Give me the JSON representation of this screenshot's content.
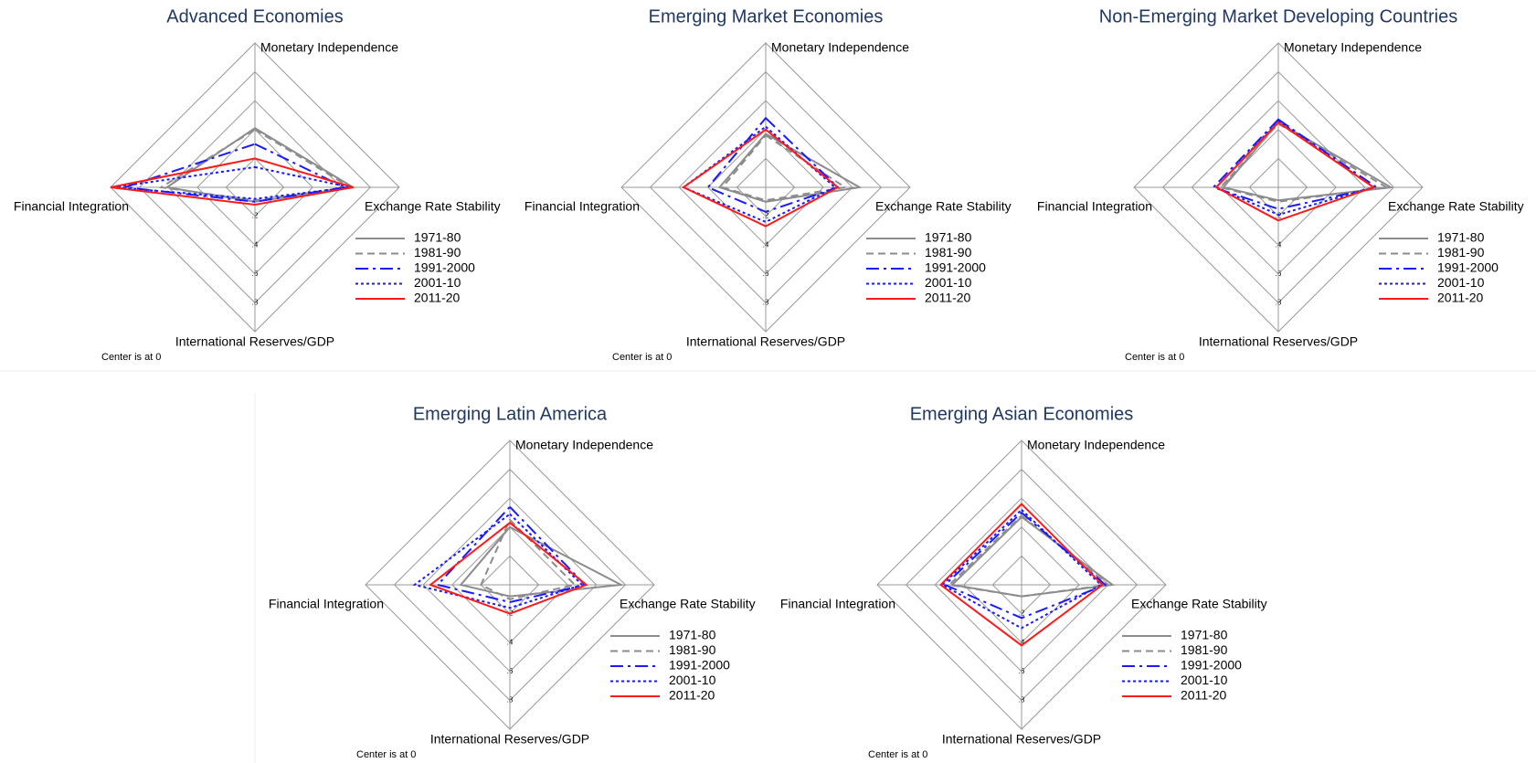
{
  "chart_data": [
    {
      "type": "radar",
      "title": "Advanced Economies",
      "categories": [
        "Monetary Independence",
        "Exchange Rate Stability",
        "International Reserves/GDP",
        "Financial Integration"
      ],
      "rlim": [
        0,
        1
      ],
      "rticks": [
        {
          "value": 0.2,
          "label": ".2"
        },
        {
          "value": 0.4,
          "label": ".4"
        },
        {
          "value": 0.6,
          "label": ".6"
        },
        {
          "value": 0.8,
          "label": ".8"
        }
      ],
      "annotation": "Center is at 0",
      "series": [
        {
          "name": "1971-80",
          "color": "#8c8c8c",
          "dash": "solid",
          "values": [
            0.41,
            0.68,
            0.1,
            0.61
          ]
        },
        {
          "name": "1981-90",
          "color": "#8c8c8c",
          "dash": "dash",
          "values": [
            0.4,
            0.66,
            0.09,
            0.65
          ]
        },
        {
          "name": "1991-2000",
          "color": "#1a1aff",
          "dash": "dashdot",
          "values": [
            0.3,
            0.62,
            0.1,
            0.9
          ]
        },
        {
          "name": "2001-10",
          "color": "#1a1aff",
          "dash": "dot",
          "values": [
            0.14,
            0.66,
            0.08,
            0.98
          ]
        },
        {
          "name": "2011-20",
          "color": "#ff1a1a",
          "dash": "solid",
          "values": [
            0.2,
            0.68,
            0.12,
            1.0
          ]
        }
      ]
    },
    {
      "type": "radar",
      "title": "Emerging Market Economies",
      "categories": [
        "Monetary Independence",
        "Exchange Rate Stability",
        "International Reserves/GDP",
        "Financial Integration"
      ],
      "rlim": [
        0,
        1
      ],
      "rticks": [
        {
          "value": 0.2,
          "label": ".2"
        },
        {
          "value": 0.4,
          "label": ".4"
        },
        {
          "value": 0.6,
          "label": ".6"
        },
        {
          "value": 0.8,
          "label": ".8"
        }
      ],
      "annotation": "Center is at 0",
      "series": [
        {
          "name": "1971-80",
          "color": "#8c8c8c",
          "dash": "solid",
          "values": [
            0.37,
            0.65,
            0.1,
            0.32
          ]
        },
        {
          "name": "1981-90",
          "color": "#8c8c8c",
          "dash": "dash",
          "values": [
            0.36,
            0.55,
            0.09,
            0.3
          ]
        },
        {
          "name": "1991-2000",
          "color": "#1a1aff",
          "dash": "dashdot",
          "values": [
            0.48,
            0.5,
            0.17,
            0.4
          ]
        },
        {
          "name": "2001-10",
          "color": "#1a1aff",
          "dash": "dot",
          "values": [
            0.42,
            0.48,
            0.24,
            0.57
          ]
        },
        {
          "name": "2011-20",
          "color": "#ff1a1a",
          "dash": "solid",
          "values": [
            0.4,
            0.5,
            0.27,
            0.57
          ]
        }
      ]
    },
    {
      "type": "radar",
      "title": "Non-Emerging Market Developing Countries",
      "categories": [
        "Monetary Independence",
        "Exchange Rate Stability",
        "International Reserves/GDP",
        "Financial Integration"
      ],
      "rlim": [
        0,
        1
      ],
      "rticks": [
        {
          "value": 0.2,
          "label": ".2"
        },
        {
          "value": 0.4,
          "label": ".4"
        },
        {
          "value": 0.6,
          "label": ".6"
        },
        {
          "value": 0.8,
          "label": ".8"
        }
      ],
      "annotation": "Center is at 0",
      "series": [
        {
          "name": "1971-80",
          "color": "#8c8c8c",
          "dash": "solid",
          "values": [
            0.45,
            0.78,
            0.09,
            0.38
          ]
        },
        {
          "name": "1981-90",
          "color": "#8c8c8c",
          "dash": "dash",
          "values": [
            0.44,
            0.75,
            0.1,
            0.4
          ]
        },
        {
          "name": "1991-2000",
          "color": "#1a1aff",
          "dash": "dashdot",
          "values": [
            0.47,
            0.68,
            0.15,
            0.45
          ]
        },
        {
          "name": "2001-10",
          "color": "#1a1aff",
          "dash": "dot",
          "values": [
            0.46,
            0.66,
            0.19,
            0.43
          ]
        },
        {
          "name": "2011-20",
          "color": "#ff1a1a",
          "dash": "solid",
          "values": [
            0.45,
            0.66,
            0.23,
            0.43
          ]
        }
      ]
    },
    {
      "type": "radar",
      "title": "Emerging Latin America",
      "categories": [
        "Monetary Independence",
        "Exchange Rate Stability",
        "International Reserves/GDP",
        "Financial Integration"
      ],
      "rlim": [
        0,
        1
      ],
      "rticks": [
        {
          "value": 0.2,
          "label": ".2"
        },
        {
          "value": 0.4,
          "label": ".4"
        },
        {
          "value": 0.6,
          "label": ".6"
        },
        {
          "value": 0.8,
          "label": ".8"
        }
      ],
      "annotation": "Center is at 0",
      "series": [
        {
          "name": "1971-80",
          "color": "#8c8c8c",
          "dash": "solid",
          "values": [
            0.4,
            0.77,
            0.08,
            0.34
          ]
        },
        {
          "name": "1981-90",
          "color": "#8c8c8c",
          "dash": "dash",
          "values": [
            0.45,
            0.45,
            0.1,
            0.2
          ]
        },
        {
          "name": "1991-2000",
          "color": "#1a1aff",
          "dash": "dashdot",
          "values": [
            0.54,
            0.52,
            0.12,
            0.5
          ]
        },
        {
          "name": "2001-10",
          "color": "#1a1aff",
          "dash": "dot",
          "values": [
            0.49,
            0.5,
            0.16,
            0.66
          ]
        },
        {
          "name": "2011-20",
          "color": "#ff1a1a",
          "dash": "solid",
          "values": [
            0.43,
            0.53,
            0.2,
            0.55
          ]
        }
      ]
    },
    {
      "type": "radar",
      "title": "Emerging Asian Economies",
      "categories": [
        "Monetary Independence",
        "Exchange Rate Stability",
        "International Reserves/GDP",
        "Financial Integration"
      ],
      "rlim": [
        0,
        1
      ],
      "rticks": [
        {
          "value": 0.2,
          "label": ".2"
        },
        {
          "value": 0.4,
          "label": ".4"
        },
        {
          "value": 0.6,
          "label": ".6"
        },
        {
          "value": 0.8,
          "label": ".8"
        }
      ],
      "annotation": "Center is at 0",
      "series": [
        {
          "name": "1971-80",
          "color": "#8c8c8c",
          "dash": "solid",
          "values": [
            0.47,
            0.63,
            0.08,
            0.48
          ]
        },
        {
          "name": "1981-90",
          "color": "#8c8c8c",
          "dash": "dash",
          "values": [
            0.48,
            0.6,
            0.08,
            0.5
          ]
        },
        {
          "name": "1991-2000",
          "color": "#1a1aff",
          "dash": "dashdot",
          "values": [
            0.5,
            0.58,
            0.23,
            0.53
          ]
        },
        {
          "name": "2001-10",
          "color": "#1a1aff",
          "dash": "dot",
          "values": [
            0.52,
            0.55,
            0.3,
            0.55
          ]
        },
        {
          "name": "2011-20",
          "color": "#ff1a1a",
          "dash": "solid",
          "values": [
            0.56,
            0.56,
            0.42,
            0.56
          ]
        }
      ]
    }
  ]
}
